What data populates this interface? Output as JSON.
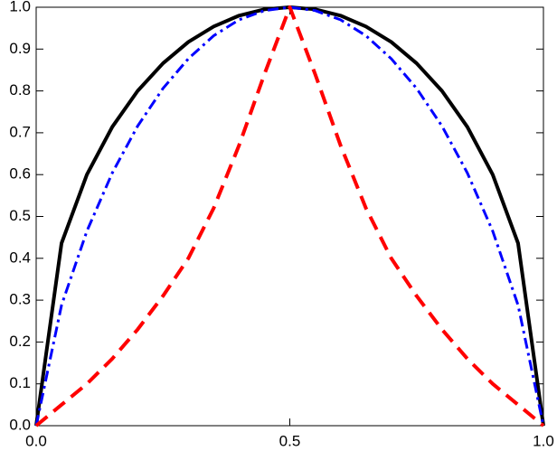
{
  "chart_data": {
    "type": "line",
    "x": [
      0,
      0.05,
      0.1,
      0.15,
      0.2,
      0.25,
      0.3,
      0.35,
      0.4,
      0.45,
      0.5,
      0.55,
      0.6,
      0.65,
      0.7,
      0.75,
      0.8,
      0.85,
      0.9,
      0.95,
      1
    ],
    "series": [
      {
        "color": "#000000",
        "dash": "solid",
        "values": [
          0,
          0.436,
          0.6,
          0.714,
          0.8,
          0.866,
          0.917,
          0.954,
          0.98,
          0.995,
          1,
          0.995,
          0.98,
          0.954,
          0.917,
          0.866,
          0.8,
          0.714,
          0.6,
          0.436,
          0
        ]
      },
      {
        "color": "#0000ff",
        "dash": "dashdot",
        "values": [
          0,
          0.288,
          0.465,
          0.604,
          0.716,
          0.806,
          0.877,
          0.932,
          0.97,
          0.992,
          1,
          0.992,
          0.97,
          0.932,
          0.877,
          0.806,
          0.716,
          0.604,
          0.465,
          0.288,
          0
        ]
      },
      {
        "color": "#ff0000",
        "dash": "dashed",
        "values": [
          0,
          0.05,
          0.1,
          0.16,
          0.23,
          0.31,
          0.4,
          0.52,
          0.67,
          0.84,
          1,
          0.84,
          0.67,
          0.52,
          0.4,
          0.31,
          0.23,
          0.16,
          0.1,
          0.05,
          0
        ]
      }
    ],
    "xlim": [
      0,
      1
    ],
    "ylim": [
      0,
      1
    ],
    "xticks": [
      {
        "value": 0,
        "label": "0.0"
      },
      {
        "value": 0.5,
        "label": "0.5"
      },
      {
        "value": 1,
        "label": "1.0"
      }
    ],
    "yticks": [
      {
        "value": 0,
        "label": "0.0"
      },
      {
        "value": 0.1,
        "label": "0.1"
      },
      {
        "value": 0.2,
        "label": "0.2"
      },
      {
        "value": 0.3,
        "label": "0.3"
      },
      {
        "value": 0.4,
        "label": "0.4"
      },
      {
        "value": 0.5,
        "label": "0.5"
      },
      {
        "value": 0.6,
        "label": "0.6"
      },
      {
        "value": 0.7,
        "label": "0.7"
      },
      {
        "value": 0.8,
        "label": "0.8"
      },
      {
        "value": 0.9,
        "label": "0.9"
      },
      {
        "value": 1,
        "label": "1.0"
      }
    ],
    "grid": false
  }
}
